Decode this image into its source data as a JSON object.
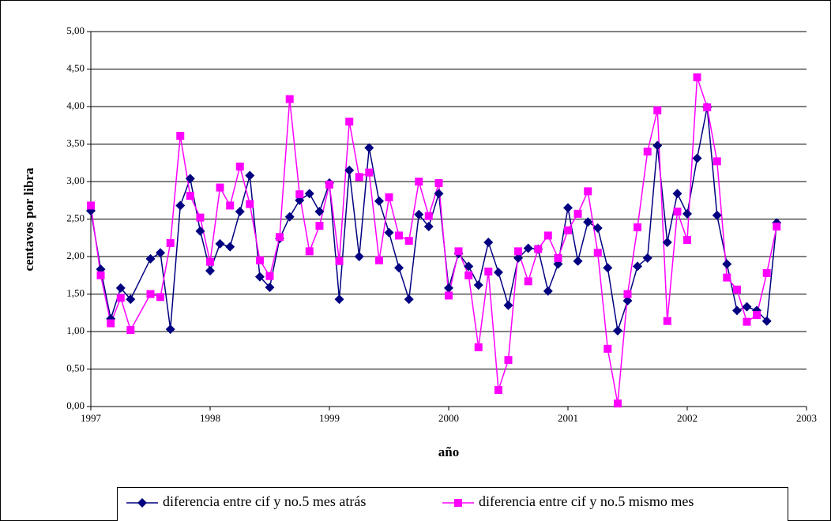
{
  "chart_data": {
    "type": "line",
    "x_label": "año",
    "y_label": "centavos por libra",
    "x": [
      1997,
      1997.083,
      1997.167,
      1997.25,
      1997.333,
      1997.5,
      1997.583,
      1997.667,
      1997.75,
      1997.833,
      1997.917,
      1998,
      1998.083,
      1998.167,
      1998.25,
      1998.333,
      1998.417,
      1998.5,
      1998.583,
      1998.667,
      1998.75,
      1998.833,
      1998.917,
      1999,
      1999.083,
      1999.167,
      1999.25,
      1999.333,
      1999.417,
      1999.5,
      1999.583,
      1999.667,
      1999.75,
      1999.833,
      1999.917,
      2000,
      2000.083,
      2000.167,
      2000.25,
      2000.333,
      2000.417,
      2000.5,
      2000.583,
      2000.667,
      2000.75,
      2000.833,
      2000.917,
      2001,
      2001.083,
      2001.167,
      2001.25,
      2001.333,
      2001.417,
      2001.5,
      2001.583,
      2001.667,
      2001.75,
      2001.833,
      2001.917,
      2002,
      2002.083,
      2002.167,
      2002.25,
      2002.333,
      2002.417,
      2002.5,
      2002.583,
      2002.667,
      2002.75
    ],
    "series": [
      {
        "name": "diferencia entre cif y no.5 mes atrás",
        "color": "#000080",
        "marker": "diamond",
        "values": [
          2.61,
          1.83,
          1.17,
          1.58,
          1.43,
          1.97,
          2.05,
          1.03,
          2.68,
          3.04,
          2.34,
          1.81,
          2.17,
          2.13,
          2.6,
          3.08,
          1.73,
          1.59,
          2.24,
          2.53,
          2.75,
          2.84,
          2.6,
          2.98,
          1.43,
          3.15,
          2.0,
          3.45,
          2.74,
          2.32,
          1.85,
          1.43,
          2.56,
          2.4,
          2.84,
          1.58,
          2.04,
          1.87,
          1.62,
          2.19,
          1.79,
          1.35,
          1.98,
          2.11,
          2.1,
          1.54,
          1.9,
          2.65,
          1.94,
          2.46,
          2.38,
          1.85,
          1.01,
          1.41,
          1.87,
          1.98,
          3.48,
          2.19,
          2.84,
          2.57,
          3.31,
          3.99,
          2.55,
          1.9,
          1.28,
          1.33,
          1.28,
          1.14,
          2.45
        ]
      },
      {
        "name": "diferencia entre cif y no.5 mismo mes",
        "color": "#ff00ff",
        "marker": "square",
        "values": [
          2.68,
          1.75,
          1.11,
          1.45,
          1.02,
          1.5,
          1.46,
          2.18,
          3.61,
          2.81,
          2.52,
          1.93,
          2.92,
          2.68,
          3.2,
          2.7,
          1.95,
          1.74,
          2.26,
          4.1,
          2.83,
          2.07,
          2.41,
          2.96,
          1.94,
          3.8,
          3.06,
          3.12,
          1.95,
          2.79,
          2.28,
          2.21,
          3.0,
          2.54,
          2.98,
          1.48,
          2.07,
          1.75,
          0.79,
          1.8,
          0.22,
          0.62,
          2.07,
          1.67,
          2.1,
          2.28,
          1.98,
          2.35,
          2.57,
          2.87,
          2.05,
          0.77,
          0.04,
          1.5,
          2.39,
          3.4,
          3.95,
          1.14,
          2.6,
          2.22,
          4.39,
          3.99,
          3.27,
          1.72,
          1.56,
          1.13,
          1.22,
          1.78,
          2.4
        ]
      }
    ],
    "xlim": [
      1997,
      2003
    ],
    "xticks": [
      1997,
      1998,
      1999,
      2000,
      2001,
      2002,
      2003
    ],
    "ylim": [
      0,
      5
    ],
    "yticks": [
      {
        "value": 0,
        "label": "0,00"
      },
      {
        "value": 0.5,
        "label": "0,50"
      },
      {
        "value": 1,
        "label": "1,00"
      },
      {
        "value": 1.5,
        "label": "1,50"
      },
      {
        "value": 2,
        "label": "2,00"
      },
      {
        "value": 2.5,
        "label": "2,50"
      },
      {
        "value": 3,
        "label": "3,00"
      },
      {
        "value": 3.5,
        "label": "3,50"
      },
      {
        "value": 4,
        "label": "4,00"
      },
      {
        "value": 4.5,
        "label": "4,50"
      },
      {
        "value": 5,
        "label": "5,00"
      }
    ],
    "grid": true,
    "legend": "bottom"
  }
}
